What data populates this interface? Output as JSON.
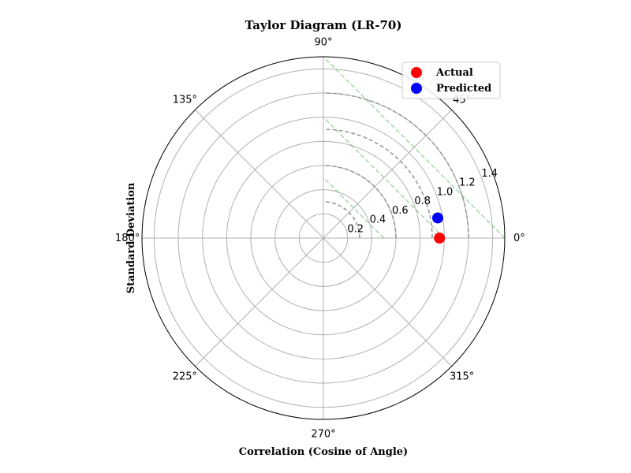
{
  "chart_data": {
    "type": "scatter",
    "projection": "polar",
    "title": "Taylor Diagram (LR-70)",
    "xlabel": "Correlation (Cosine of Angle)",
    "ylabel": "Standard Deviation",
    "angle_ticks": [
      {
        "deg": 0,
        "label": "0°"
      },
      {
        "deg": 45,
        "label": "45°"
      },
      {
        "deg": 90,
        "label": "90°"
      },
      {
        "deg": 135,
        "label": "135°"
      },
      {
        "deg": 180,
        "label": "180°"
      },
      {
        "deg": 225,
        "label": "225°"
      },
      {
        "deg": 270,
        "label": "270°"
      },
      {
        "deg": 315,
        "label": "315°"
      }
    ],
    "radial_ticks": [
      {
        "value": 0.2,
        "label": "0.2"
      },
      {
        "value": 0.4,
        "label": "0.4"
      },
      {
        "value": 0.6,
        "label": "0.6"
      },
      {
        "value": 0.8,
        "label": "0.8"
      },
      {
        "value": 1.0,
        "label": "1.0"
      },
      {
        "value": 1.2,
        "label": "1.2"
      },
      {
        "value": 1.4,
        "label": "1.4"
      }
    ],
    "rlim": [
      0,
      1.5
    ],
    "grid": true,
    "legend_position": "top-right",
    "series": [
      {
        "name": "Actual",
        "color": "#ff0000",
        "points": [
          {
            "angle_deg": 0,
            "r": 0.96
          }
        ]
      },
      {
        "name": "Predicted",
        "color": "#0000ff",
        "points": [
          {
            "angle_deg": 10,
            "r": 0.96
          }
        ]
      }
    ],
    "std_dev_arcs": [
      0.3,
      0.6,
      0.9,
      1.2
    ],
    "reference_lines": [
      0.5,
      1.0,
      1.5
    ]
  }
}
